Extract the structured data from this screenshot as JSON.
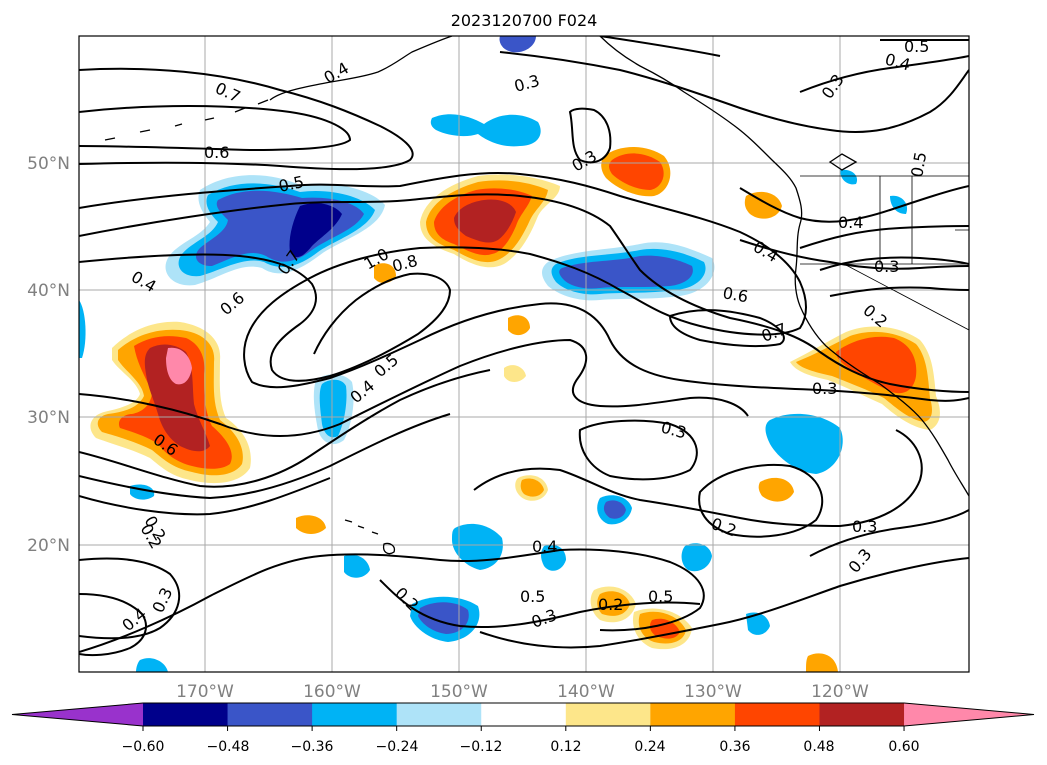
{
  "title": "2023120700 F024",
  "latitude_labels": [
    "50°N",
    "40°N",
    "30°N",
    "20°N"
  ],
  "longitude_labels": [
    "170°W",
    "160°W",
    "150°W",
    "140°W",
    "130°W",
    "120°W"
  ],
  "colorbar": {
    "tick_labels": [
      "−0.60",
      "−0.48",
      "−0.36",
      "−0.24",
      "−0.12",
      "0.12",
      "0.24",
      "0.36",
      "0.48",
      "0.60"
    ],
    "colors": [
      "#9932cc",
      "#00008b",
      "#3a55c8",
      "#00b3f5",
      "#aee3f8",
      "#ffffff",
      "#fde68a",
      "#ffa500",
      "#ff4500",
      "#b22222",
      "#ff88aa"
    ]
  },
  "contour_labels": [
    "0.7",
    "0.6",
    "0.5",
    "0.4",
    "0.6",
    "0.7",
    "0.4",
    "0.6",
    "0.2",
    "0.3",
    "0.4",
    "0.3",
    "1.0",
    "0.8",
    "0.5",
    "0.4",
    "0.3",
    "0.3",
    "0.4",
    "0.6",
    "0.7",
    "0.4",
    "0.3",
    "0.2",
    "0.5",
    "0.4",
    "0.3",
    "0.5",
    "0.3",
    "0.3",
    "0.2",
    "0.3",
    "0.2",
    "0.4",
    "0.5",
    "0.3",
    "0.2",
    "0.5",
    "0.2"
  ]
}
